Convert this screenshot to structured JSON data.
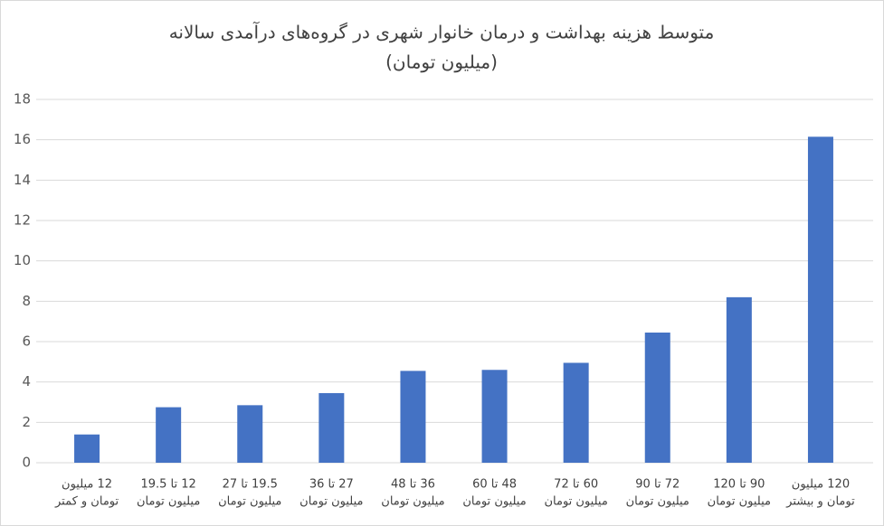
{
  "chart_data": {
    "type": "bar",
    "title": "متوسط هزینه بهداشت و درمان خانوار شهری در گروه‌های درآمدی سالانه",
    "subtitle": "(میلیون تومان)",
    "categories": [
      [
        "12 میلیون",
        "تومان و کمتر"
      ],
      [
        "12 تا 19.5",
        "میلیون تومان"
      ],
      [
        "19.5 تا 27",
        "میلیون تومان"
      ],
      [
        "27 تا 36",
        "میلیون تومان"
      ],
      [
        "36 تا 48",
        "میلیون تومان"
      ],
      [
        "48 تا 60",
        "میلیون تومان"
      ],
      [
        "60 تا 72",
        "میلیون تومان"
      ],
      [
        "72 تا 90",
        "میلیون تومان"
      ],
      [
        "90 تا 120",
        "میلیون تومان"
      ],
      [
        "120 میلیون",
        "تومان و بیشتر"
      ]
    ],
    "values": [
      1.4,
      2.75,
      2.85,
      3.45,
      4.55,
      4.6,
      4.95,
      6.45,
      8.2,
      16.15
    ],
    "color": "#4472c4",
    "ylim": [
      0,
      18
    ],
    "yticks": [
      0,
      2,
      4,
      6,
      8,
      10,
      12,
      14,
      16,
      18
    ],
    "grid": true
  }
}
